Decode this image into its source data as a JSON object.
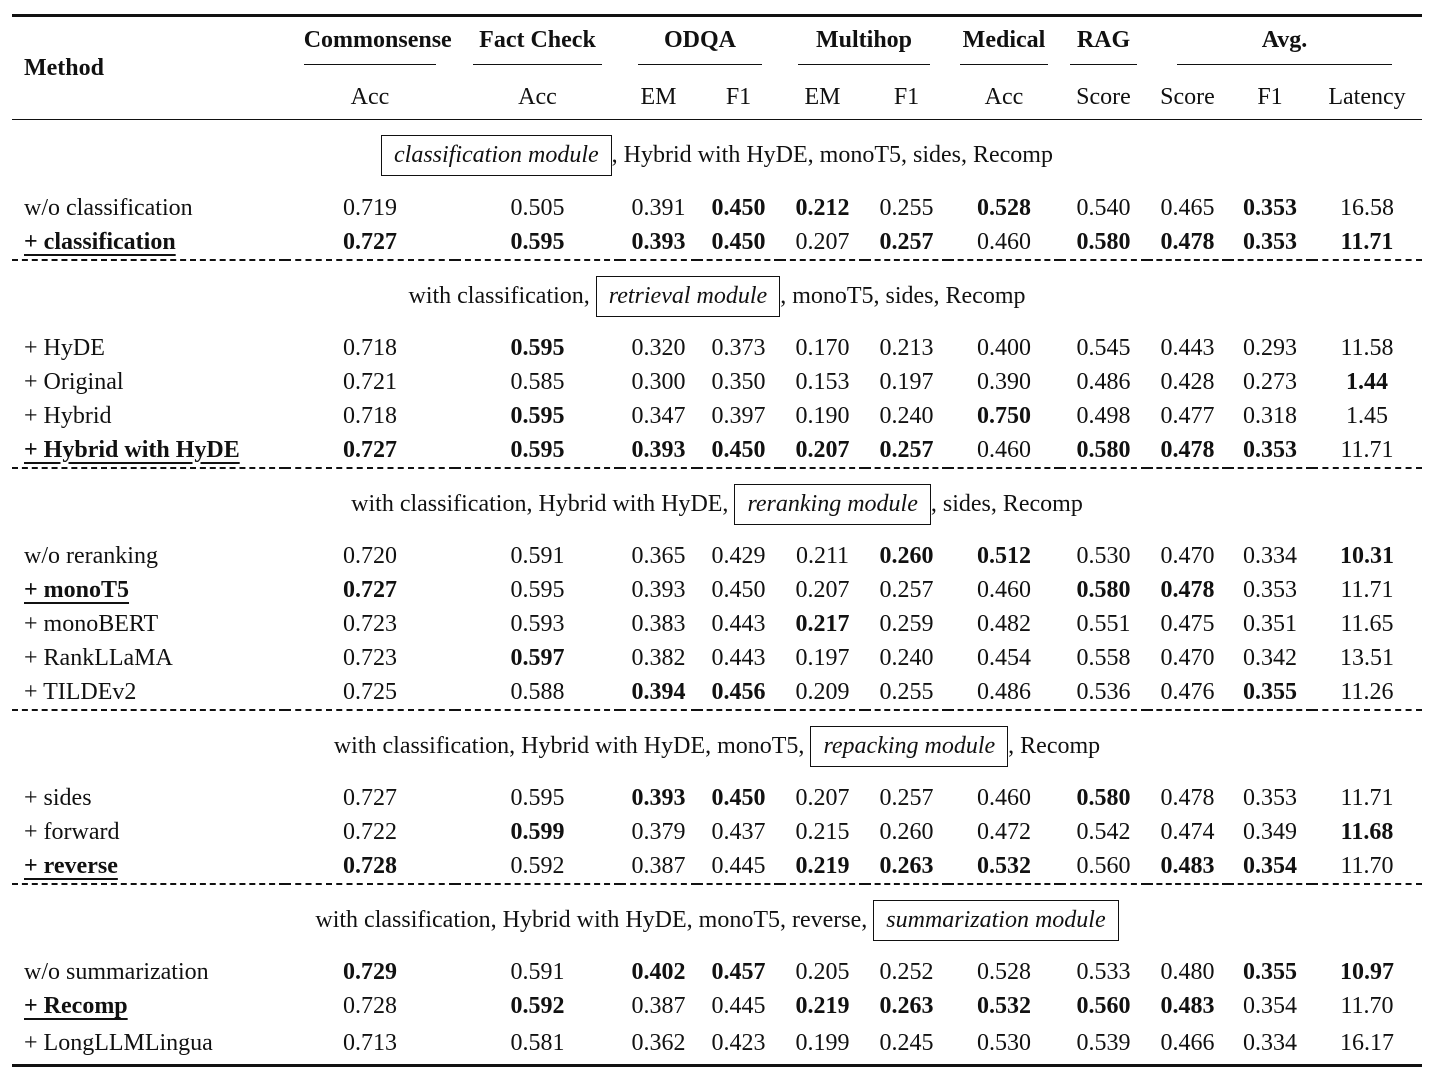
{
  "table": {
    "header": {
      "method": "Method",
      "groups": [
        {
          "label": "Commonsense",
          "span": 1
        },
        {
          "label": "Fact Check",
          "span": 1
        },
        {
          "label": "ODQA",
          "span": 2
        },
        {
          "label": "Multihop",
          "span": 2
        },
        {
          "label": "Medical",
          "span": 1
        },
        {
          "label": "RAG",
          "span": 1
        },
        {
          "label": "Avg.",
          "span": 3
        }
      ],
      "subheaders": [
        "Acc",
        "Acc",
        "EM",
        "F1",
        "EM",
        "F1",
        "Acc",
        "Score",
        "Score",
        "F1",
        "Latency"
      ]
    },
    "sections": [
      {
        "caption": {
          "module": "classification module",
          "suffix": ", Hybrid with HyDE, monoT5, sides, Recomp"
        },
        "rows": [
          {
            "method": "w/o classification",
            "values": [
              "0.719",
              "0.505",
              "0.391",
              "0.450",
              "0.212",
              "0.255",
              "0.528",
              "0.540",
              "0.465",
              "0.353",
              "16.58"
            ],
            "bold": [
              3,
              4,
              6,
              9
            ]
          },
          {
            "method": "+ classification",
            "selected": true,
            "values": [
              "0.727",
              "0.595",
              "0.393",
              "0.450",
              "0.207",
              "0.257",
              "0.460",
              "0.580",
              "0.478",
              "0.353",
              "11.71"
            ],
            "bold": [
              0,
              1,
              2,
              3,
              5,
              7,
              8,
              9,
              10
            ]
          }
        ]
      },
      {
        "caption": {
          "prefix": "with classification, ",
          "module": "retrieval module",
          "suffix": ", monoT5, sides, Recomp"
        },
        "rows": [
          {
            "method": "+ HyDE",
            "values": [
              "0.718",
              "0.595",
              "0.320",
              "0.373",
              "0.170",
              "0.213",
              "0.400",
              "0.545",
              "0.443",
              "0.293",
              "11.58"
            ],
            "bold": [
              1
            ]
          },
          {
            "method": "+ Original",
            "values": [
              "0.721",
              "0.585",
              "0.300",
              "0.350",
              "0.153",
              "0.197",
              "0.390",
              "0.486",
              "0.428",
              "0.273",
              "1.44"
            ],
            "bold": [
              10
            ]
          },
          {
            "method": "+ Hybrid",
            "values": [
              "0.718",
              "0.595",
              "0.347",
              "0.397",
              "0.190",
              "0.240",
              "0.750",
              "0.498",
              "0.477",
              "0.318",
              "1.45"
            ],
            "bold": [
              1,
              6
            ]
          },
          {
            "method": "+ Hybrid with HyDE",
            "selected": true,
            "values": [
              "0.727",
              "0.595",
              "0.393",
              "0.450",
              "0.207",
              "0.257",
              "0.460",
              "0.580",
              "0.478",
              "0.353",
              "11.71"
            ],
            "bold": [
              0,
              1,
              2,
              3,
              4,
              5,
              7,
              8,
              9
            ]
          }
        ]
      },
      {
        "caption": {
          "prefix": "with classification, Hybrid with HyDE, ",
          "module": "reranking module",
          "suffix": ", sides, Recomp"
        },
        "rows": [
          {
            "method": "w/o reranking",
            "values": [
              "0.720",
              "0.591",
              "0.365",
              "0.429",
              "0.211",
              "0.260",
              "0.512",
              "0.530",
              "0.470",
              "0.334",
              "10.31"
            ],
            "bold": [
              5,
              6,
              10
            ]
          },
          {
            "method": "+ monoT5",
            "selected": true,
            "values": [
              "0.727",
              "0.595",
              "0.393",
              "0.450",
              "0.207",
              "0.257",
              "0.460",
              "0.580",
              "0.478",
              "0.353",
              "11.71"
            ],
            "bold": [
              0,
              7,
              8
            ]
          },
          {
            "method": "+ monoBERT",
            "values": [
              "0.723",
              "0.593",
              "0.383",
              "0.443",
              "0.217",
              "0.259",
              "0.482",
              "0.551",
              "0.475",
              "0.351",
              "11.65"
            ],
            "bold": [
              4
            ]
          },
          {
            "method": "+ RankLLaMA",
            "values": [
              "0.723",
              "0.597",
              "0.382",
              "0.443",
              "0.197",
              "0.240",
              "0.454",
              "0.558",
              "0.470",
              "0.342",
              "13.51"
            ],
            "bold": [
              1
            ]
          },
          {
            "method": "+ TILDEv2",
            "values": [
              "0.725",
              "0.588",
              "0.394",
              "0.456",
              "0.209",
              "0.255",
              "0.486",
              "0.536",
              "0.476",
              "0.355",
              "11.26"
            ],
            "bold": [
              2,
              3,
              9
            ]
          }
        ]
      },
      {
        "caption": {
          "prefix": "with classification, Hybrid with HyDE, monoT5, ",
          "module": "repacking module",
          "suffix": ", Recomp"
        },
        "rows": [
          {
            "method": "+ sides",
            "values": [
              "0.727",
              "0.595",
              "0.393",
              "0.450",
              "0.207",
              "0.257",
              "0.460",
              "0.580",
              "0.478",
              "0.353",
              "11.71"
            ],
            "bold": [
              2,
              3,
              7
            ]
          },
          {
            "method": "+ forward",
            "values": [
              "0.722",
              "0.599",
              "0.379",
              "0.437",
              "0.215",
              "0.260",
              "0.472",
              "0.542",
              "0.474",
              "0.349",
              "11.68"
            ],
            "bold": [
              1,
              10
            ]
          },
          {
            "method": "+ reverse",
            "selected": true,
            "values": [
              "0.728",
              "0.592",
              "0.387",
              "0.445",
              "0.219",
              "0.263",
              "0.532",
              "0.560",
              "0.483",
              "0.354",
              "11.70"
            ],
            "bold": [
              0,
              4,
              5,
              6,
              8,
              9
            ]
          }
        ]
      },
      {
        "caption": {
          "prefix": "with classification, Hybrid with HyDE, monoT5, reverse, ",
          "module": "summarization module"
        },
        "rows": [
          {
            "method": "w/o summarization",
            "values": [
              "0.729",
              "0.591",
              "0.402",
              "0.457",
              "0.205",
              "0.252",
              "0.528",
              "0.533",
              "0.480",
              "0.355",
              "10.97"
            ],
            "bold": [
              0,
              2,
              3,
              9,
              10
            ]
          },
          {
            "method": "+ Recomp",
            "selected": true,
            "values": [
              "0.728",
              "0.592",
              "0.387",
              "0.445",
              "0.219",
              "0.263",
              "0.532",
              "0.560",
              "0.483",
              "0.354",
              "11.70"
            ],
            "bold": [
              1,
              4,
              5,
              6,
              7,
              8
            ]
          },
          {
            "method": "+ LongLLMLingua",
            "values": [
              "0.713",
              "0.581",
              "0.362",
              "0.423",
              "0.199",
              "0.245",
              "0.530",
              "0.539",
              "0.466",
              "0.334",
              "16.17"
            ],
            "bold": []
          }
        ]
      }
    ]
  }
}
